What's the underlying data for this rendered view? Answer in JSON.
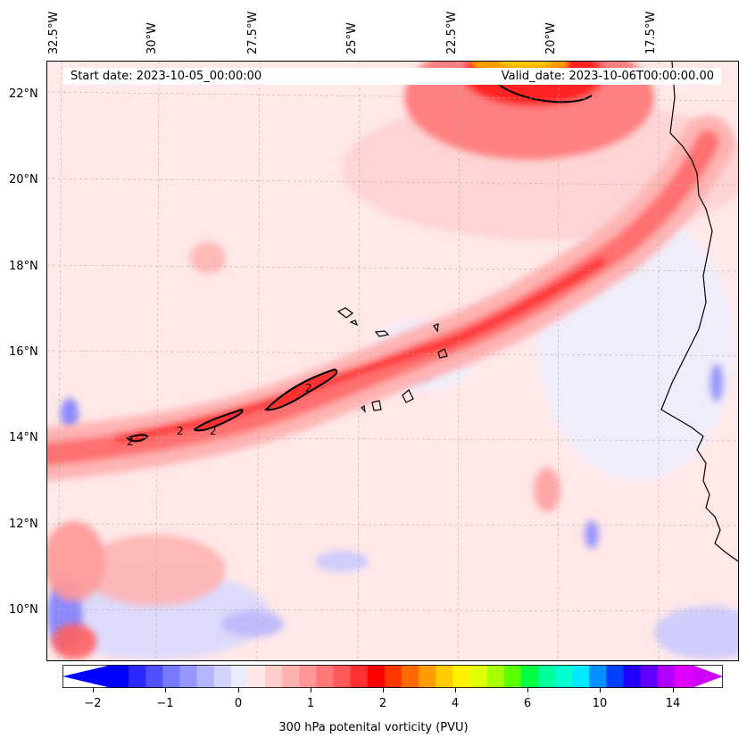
{
  "map": {
    "info_start": "Start date: 2023-10-05_00:00:00",
    "info_valid": "Valid_date: 2023-10-06T00:00:00.00",
    "lon_labels": [
      "32.5°W",
      "30°W",
      "27.5°W",
      "25°W",
      "22.5°W",
      "20°W",
      "17.5°W"
    ],
    "lat_labels": [
      "22°N",
      "20°N",
      "18°N",
      "16°N",
      "14°N",
      "12°N",
      "10°N"
    ],
    "contour_label": "2",
    "colors": {
      "negative": "#4a4aff",
      "low": "#ffb3b3",
      "high": "#ff0000",
      "peak": "#ff8c00",
      "coast": "#000000"
    }
  },
  "colorbar": {
    "label": "300 hPa potenital vorticity (PVU)",
    "ticks": [
      "−2",
      "−1",
      "0",
      "1",
      "2",
      "4",
      "6",
      "10",
      "14"
    ],
    "colors": [
      "#0000ff",
      "#2828ff",
      "#5050ff",
      "#7878ff",
      "#9696ff",
      "#b4b4ff",
      "#d2d2ff",
      "#ececff",
      "#ffe6e6",
      "#ffcccc",
      "#ffb0b0",
      "#ff9595",
      "#ff7878",
      "#ff5a5a",
      "#ff3030",
      "#ff0000",
      "#ff3800",
      "#ff6a00",
      "#ff9a00",
      "#ffcc00",
      "#fff000",
      "#e0ff00",
      "#a8ff00",
      "#5aff00",
      "#00ff40",
      "#00ff9a",
      "#00ffd0",
      "#00e8ff",
      "#0090ff",
      "#0040ff",
      "#2000ff",
      "#6000ff",
      "#b000ff",
      "#e000ff"
    ]
  }
}
